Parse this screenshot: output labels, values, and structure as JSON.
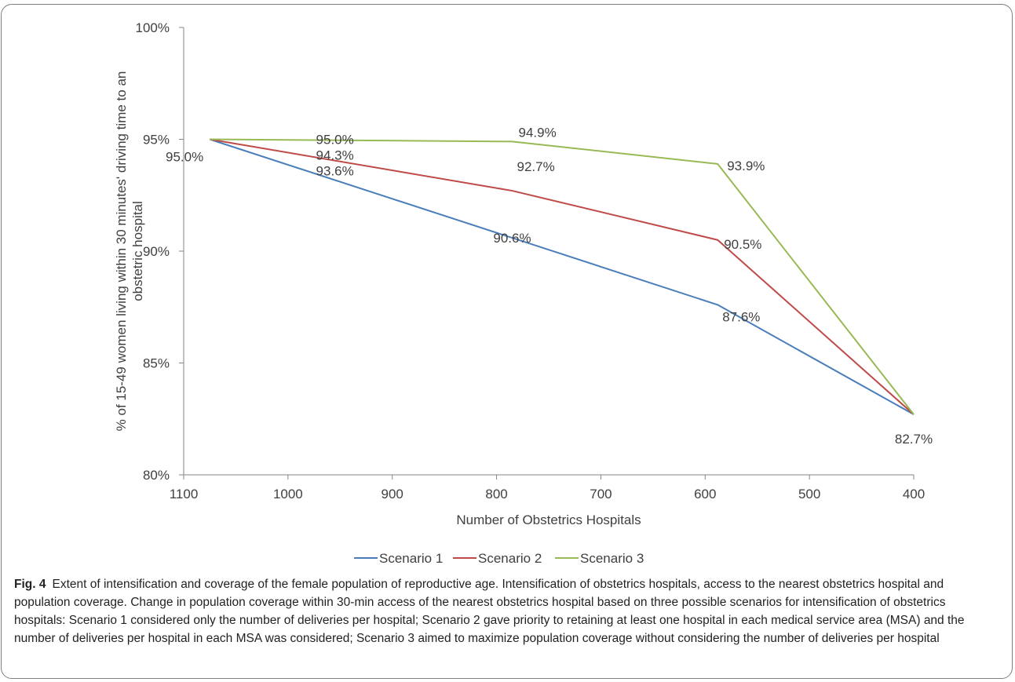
{
  "chart_data": {
    "type": "line",
    "xlabel": "Number of Obstetrics Hospitals",
    "ylabel": "% of 15-49 women living  within 30 minutes' driving time to an obstetric hospital",
    "x_ticks": [
      "1100",
      "1000",
      "900",
      "800",
      "700",
      "600",
      "500",
      "400"
    ],
    "xlim": [
      1100,
      400
    ],
    "y_ticks": [
      "80%",
      "85%",
      "90%",
      "95%",
      "100%"
    ],
    "ylim": [
      80,
      100
    ],
    "legend_position": "bottom",
    "series": [
      {
        "name": "Scenario 1",
        "color": "#4a7ebb",
        "x": [
          1075,
          588,
          400
        ],
        "y": [
          95.0,
          87.6,
          82.7
        ],
        "labels": [
          null,
          "87.6%",
          "82.7%"
        ]
      },
      {
        "name": "Scenario 2",
        "color": "#be4b48",
        "x": [
          1075,
          785,
          588,
          400
        ],
        "y": [
          95.0,
          92.7,
          90.5,
          82.7
        ],
        "labels": [
          null,
          "92.7%",
          "90.5%",
          null
        ]
      },
      {
        "name": "Scenario 3",
        "color": "#98b954",
        "x": [
          1075,
          785,
          588,
          400
        ],
        "y": [
          95.0,
          94.9,
          93.9,
          82.7
        ],
        "labels": [
          "95.0%",
          "94.9%",
          "93.9%",
          null
        ]
      }
    ],
    "annotations": [
      {
        "text": "95.0%",
        "x": 955,
        "y": 95.0
      },
      {
        "text": "94.3%",
        "x": 955,
        "y": 94.3
      },
      {
        "text": "93.6%",
        "x": 955,
        "y": 93.6
      },
      {
        "text": "90.6%",
        "x": 785,
        "y": 90.6
      }
    ]
  },
  "caption": {
    "fig_label": "Fig. 4",
    "text": "Extent of intensification and coverage of the female population of reproductive age. Intensification of obstetrics hospitals, access to the nearest obstetrics hospital and population coverage. Change in population coverage within 30-min access of the nearest obstetrics hospital based on three possible scenarios for intensification of obstetrics hospitals: Scenario 1 considered only the number of deliveries per hospital; Scenario 2 gave priority to retaining at least one hospital in each medical service area (MSA) and the number of deliveries per hospital in each MSA was considered; Scenario 3 aimed to maximize population coverage without considering the number of deliveries per hospital"
  }
}
